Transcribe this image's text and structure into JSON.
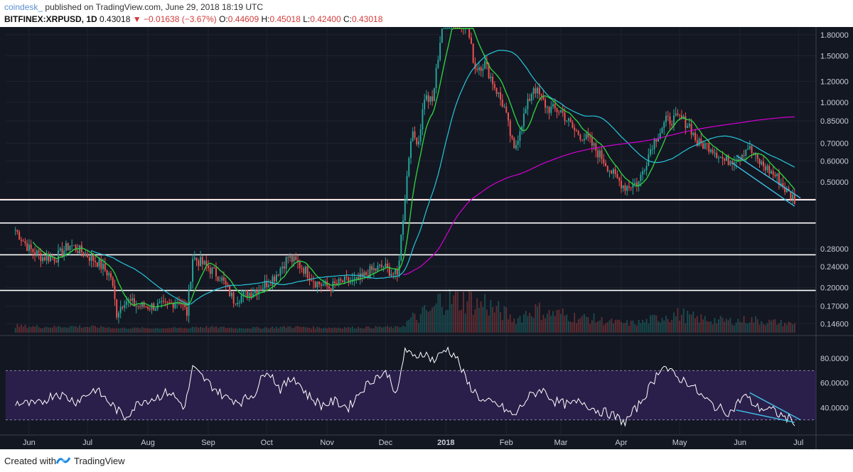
{
  "header": {
    "author": "coindesk_",
    "published_text": "published on TradingView.com, June 29, 2018 18:19 UTC",
    "symbol": "BITFINEX:XRPUSD, 1D",
    "last": "0.43018",
    "arrow": "▼",
    "change": "−0.01638 (−3.67%)",
    "o_label": "O:",
    "o": "0.44609",
    "h_label": "H:",
    "h": "0.45018",
    "l_label": "L:",
    "l": "0.42400",
    "c_label": "C:",
    "c": "0.43018"
  },
  "footer": {
    "created_with": "Created with",
    "brand": "TradingView"
  },
  "colors": {
    "background": "#131722",
    "up": "#26a69a",
    "down": "#ef5350",
    "sma_fast": "#2ecc40",
    "sma_mid": "#26c6da",
    "sma_slow": "#d400d4",
    "rsi": "#ffffff",
    "rsi_band": "#2a1f4a",
    "trend": "#3fc1e8",
    "price_badge": "#ef5350"
  },
  "chart_data": [
    {
      "type": "candlestick",
      "title": "BITFINEX:XRPUSD, 1D",
      "scale": "log",
      "ylim": [
        0.135,
        1.9
      ],
      "price_axis_ticks": [
        "1.80000",
        "1.50000",
        "1.20000",
        "1.00000",
        "0.85000",
        "0.70000",
        "0.60000",
        "0.50000",
        "0.28000",
        "0.24000",
        "0.20000",
        "0.17000",
        "0.14600"
      ],
      "time_axis_ticks": [
        "Jun",
        "Jul",
        "Aug",
        "Sep",
        "Oct",
        "Nov",
        "Dec",
        "2018",
        "Feb",
        "Mar",
        "Apr",
        "May",
        "Jun",
        "Jul"
      ],
      "horizontal_levels": [
        {
          "value": 0.43018,
          "label": "0.43018",
          "style": "current"
        },
        {
          "value": 0.42807,
          "label": "0.42807",
          "style": "level"
        },
        {
          "value": 0.35033,
          "label": "0.35033",
          "style": "level"
        },
        {
          "value": 0.2657,
          "label": "0.26570",
          "style": "level"
        },
        {
          "value": 0.19485,
          "label": "0.19485",
          "style": "level"
        }
      ],
      "price_path": [
        [
          "2017-05-25",
          0.33
        ],
        [
          "2017-06-01",
          0.28
        ],
        [
          "2017-06-08",
          0.26
        ],
        [
          "2017-06-15",
          0.26
        ],
        [
          "2017-06-22",
          0.29
        ],
        [
          "2017-06-29",
          0.27
        ],
        [
          "2017-07-06",
          0.25
        ],
        [
          "2017-07-13",
          0.22
        ],
        [
          "2017-07-16",
          0.16
        ],
        [
          "2017-07-20",
          0.18
        ],
        [
          "2017-07-27",
          0.17
        ],
        [
          "2017-08-03",
          0.17
        ],
        [
          "2017-08-10",
          0.17
        ],
        [
          "2017-08-17",
          0.18
        ],
        [
          "2017-08-21",
          0.16
        ],
        [
          "2017-08-24",
          0.26
        ],
        [
          "2017-08-31",
          0.24
        ],
        [
          "2017-09-07",
          0.22
        ],
        [
          "2017-09-14",
          0.18
        ],
        [
          "2017-09-21",
          0.19
        ],
        [
          "2017-09-28",
          0.2
        ],
        [
          "2017-10-05",
          0.22
        ],
        [
          "2017-10-12",
          0.26
        ],
        [
          "2017-10-19",
          0.24
        ],
        [
          "2017-10-26",
          0.21
        ],
        [
          "2017-11-02",
          0.2
        ],
        [
          "2017-11-09",
          0.21
        ],
        [
          "2017-11-16",
          0.21
        ],
        [
          "2017-11-23",
          0.23
        ],
        [
          "2017-11-30",
          0.24
        ],
        [
          "2017-12-07",
          0.22
        ],
        [
          "2017-12-11",
          0.44
        ],
        [
          "2017-12-14",
          0.75
        ],
        [
          "2017-12-18",
          0.72
        ],
        [
          "2017-12-21",
          1.05
        ],
        [
          "2017-12-25",
          1.0
        ],
        [
          "2017-12-30",
          1.95
        ],
        [
          "2018-01-04",
          2.5
        ],
        [
          "2018-01-08",
          2.1
        ],
        [
          "2018-01-12",
          1.9
        ],
        [
          "2018-01-16",
          1.35
        ],
        [
          "2018-01-21",
          1.4
        ],
        [
          "2018-01-26",
          1.15
        ],
        [
          "2018-01-31",
          0.95
        ],
        [
          "2018-02-05",
          0.65
        ],
        [
          "2018-02-08",
          0.8
        ],
        [
          "2018-02-15",
          1.15
        ],
        [
          "2018-02-22",
          0.95
        ],
        [
          "2018-03-01",
          0.93
        ],
        [
          "2018-03-08",
          0.78
        ],
        [
          "2018-03-15",
          0.72
        ],
        [
          "2018-03-22",
          0.62
        ],
        [
          "2018-03-29",
          0.52
        ],
        [
          "2018-04-03",
          0.48
        ],
        [
          "2018-04-10",
          0.5
        ],
        [
          "2018-04-17",
          0.7
        ],
        [
          "2018-04-24",
          0.85
        ],
        [
          "2018-05-01",
          0.87
        ],
        [
          "2018-05-06",
          0.82
        ],
        [
          "2018-05-10",
          0.7
        ],
        [
          "2018-05-17",
          0.68
        ],
        [
          "2018-05-24",
          0.6
        ],
        [
          "2018-05-31",
          0.62
        ],
        [
          "2018-06-05",
          0.68
        ],
        [
          "2018-06-10",
          0.6
        ],
        [
          "2018-06-15",
          0.56
        ],
        [
          "2018-06-20",
          0.52
        ],
        [
          "2018-06-25",
          0.46
        ],
        [
          "2018-06-29",
          0.43018
        ]
      ]
    },
    {
      "type": "line",
      "title": "RSI",
      "ylim": [
        20,
        95
      ],
      "axis_ticks": [
        "80.0000",
        "60.0000",
        "40.0000"
      ],
      "bands": [
        30,
        70
      ],
      "values_path": [
        [
          "2017-05-25",
          44
        ],
        [
          "2017-06-05",
          42
        ],
        [
          "2017-06-15",
          52
        ],
        [
          "2017-06-25",
          45
        ],
        [
          "2017-07-05",
          55
        ],
        [
          "2017-07-15",
          40
        ],
        [
          "2017-07-20",
          32
        ],
        [
          "2017-07-28",
          45
        ],
        [
          "2017-08-05",
          48
        ],
        [
          "2017-08-12",
          53
        ],
        [
          "2017-08-20",
          40
        ],
        [
          "2017-08-24",
          72
        ],
        [
          "2017-09-01",
          60
        ],
        [
          "2017-09-10",
          48
        ],
        [
          "2017-09-18",
          45
        ],
        [
          "2017-09-25",
          52
        ],
        [
          "2017-10-01",
          72
        ],
        [
          "2017-10-08",
          55
        ],
        [
          "2017-10-15",
          65
        ],
        [
          "2017-10-22",
          50
        ],
        [
          "2017-10-29",
          42
        ],
        [
          "2017-11-05",
          45
        ],
        [
          "2017-11-12",
          40
        ],
        [
          "2017-11-19",
          55
        ],
        [
          "2017-11-26",
          65
        ],
        [
          "2017-12-02",
          68
        ],
        [
          "2017-12-07",
          50
        ],
        [
          "2017-12-11",
          88
        ],
        [
          "2017-12-15",
          80
        ],
        [
          "2017-12-20",
          85
        ],
        [
          "2017-12-26",
          78
        ],
        [
          "2018-01-01",
          88
        ],
        [
          "2018-01-06",
          82
        ],
        [
          "2018-01-12",
          60
        ],
        [
          "2018-01-20",
          45
        ],
        [
          "2018-01-28",
          42
        ],
        [
          "2018-02-05",
          33
        ],
        [
          "2018-02-12",
          48
        ],
        [
          "2018-02-19",
          55
        ],
        [
          "2018-02-26",
          45
        ],
        [
          "2018-03-05",
          42
        ],
        [
          "2018-03-12",
          45
        ],
        [
          "2018-03-19",
          38
        ],
        [
          "2018-03-26",
          35
        ],
        [
          "2018-04-03",
          28
        ],
        [
          "2018-04-10",
          42
        ],
        [
          "2018-04-17",
          60
        ],
        [
          "2018-04-22",
          75
        ],
        [
          "2018-04-29",
          65
        ],
        [
          "2018-05-06",
          60
        ],
        [
          "2018-05-13",
          48
        ],
        [
          "2018-05-20",
          40
        ],
        [
          "2018-05-27",
          36
        ],
        [
          "2018-06-03",
          50
        ],
        [
          "2018-06-10",
          40
        ],
        [
          "2018-06-17",
          38
        ],
        [
          "2018-06-24",
          32
        ],
        [
          "2018-06-29",
          29
        ]
      ]
    }
  ]
}
